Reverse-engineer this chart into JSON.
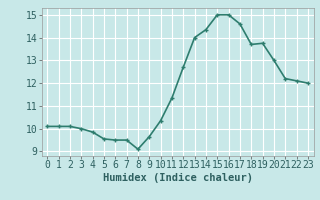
{
  "x": [
    0,
    1,
    2,
    3,
    4,
    5,
    6,
    7,
    8,
    9,
    10,
    11,
    12,
    13,
    14,
    15,
    16,
    17,
    18,
    19,
    20,
    21,
    22,
    23
  ],
  "y": [
    10.1,
    10.1,
    10.1,
    10.0,
    9.85,
    9.55,
    9.5,
    9.5,
    9.1,
    9.65,
    10.35,
    11.35,
    12.7,
    14.0,
    14.35,
    15.0,
    15.0,
    14.6,
    13.7,
    13.75,
    13.0,
    12.2,
    12.1,
    12.0
  ],
  "line_color": "#2e7d6e",
  "marker": "+",
  "marker_color": "#2e7d6e",
  "bg_color": "#c8e8e8",
  "grid_color": "#ffffff",
  "xlabel": "Humidex (Indice chaleur)",
  "xlim": [
    -0.5,
    23.5
  ],
  "ylim": [
    8.8,
    15.3
  ],
  "yticks": [
    9,
    10,
    11,
    12,
    13,
    14,
    15
  ],
  "xticks": [
    0,
    1,
    2,
    3,
    4,
    5,
    6,
    7,
    8,
    9,
    10,
    11,
    12,
    13,
    14,
    15,
    16,
    17,
    18,
    19,
    20,
    21,
    22,
    23
  ],
  "xlabel_fontsize": 7.5,
  "tick_fontsize": 7,
  "linewidth": 1.2,
  "markersize": 3.5
}
